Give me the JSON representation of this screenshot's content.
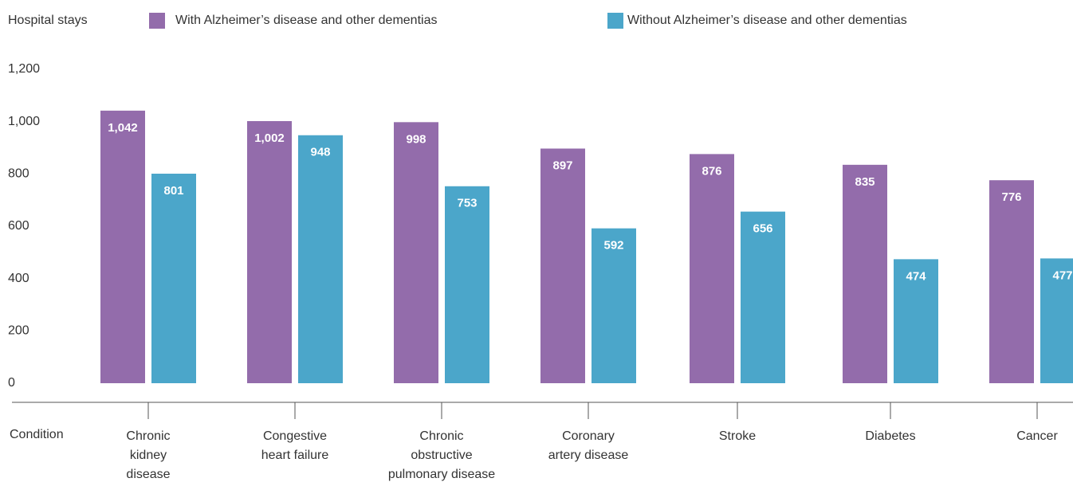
{
  "chart_data": {
    "type": "bar",
    "y_label": "Hospital stays",
    "x_label": "Condition",
    "categories": [
      "Chronic\nkidney\ndisease",
      "Congestive\nheart failure",
      "Chronic\nobstructive\npulmonary disease",
      "Coronary\nartery disease",
      "Stroke",
      "Diabetes",
      "Cancer"
    ],
    "series": [
      {
        "name": "With Alzheimer’s disease and other dementias",
        "color": "#936cab",
        "values": [
          1042,
          1002,
          998,
          897,
          876,
          835,
          776
        ],
        "value_labels": [
          "1,042",
          "1,002",
          "998",
          "897",
          "876",
          "835",
          "776"
        ]
      },
      {
        "name": "Without Alzheimer’s disease and other dementias",
        "color": "#4ba6ca",
        "values": [
          801,
          948,
          753,
          592,
          656,
          474,
          477
        ],
        "value_labels": [
          "801",
          "948",
          "753",
          "592",
          "656",
          "474",
          "477"
        ]
      }
    ],
    "ylim": [
      0,
      1200
    ],
    "yticks": [
      0,
      200,
      400,
      600,
      800,
      {
        "value": 1000,
        "label": "1,000"
      },
      {
        "value": 1200,
        "label": "1,200"
      }
    ],
    "grid": false
  }
}
